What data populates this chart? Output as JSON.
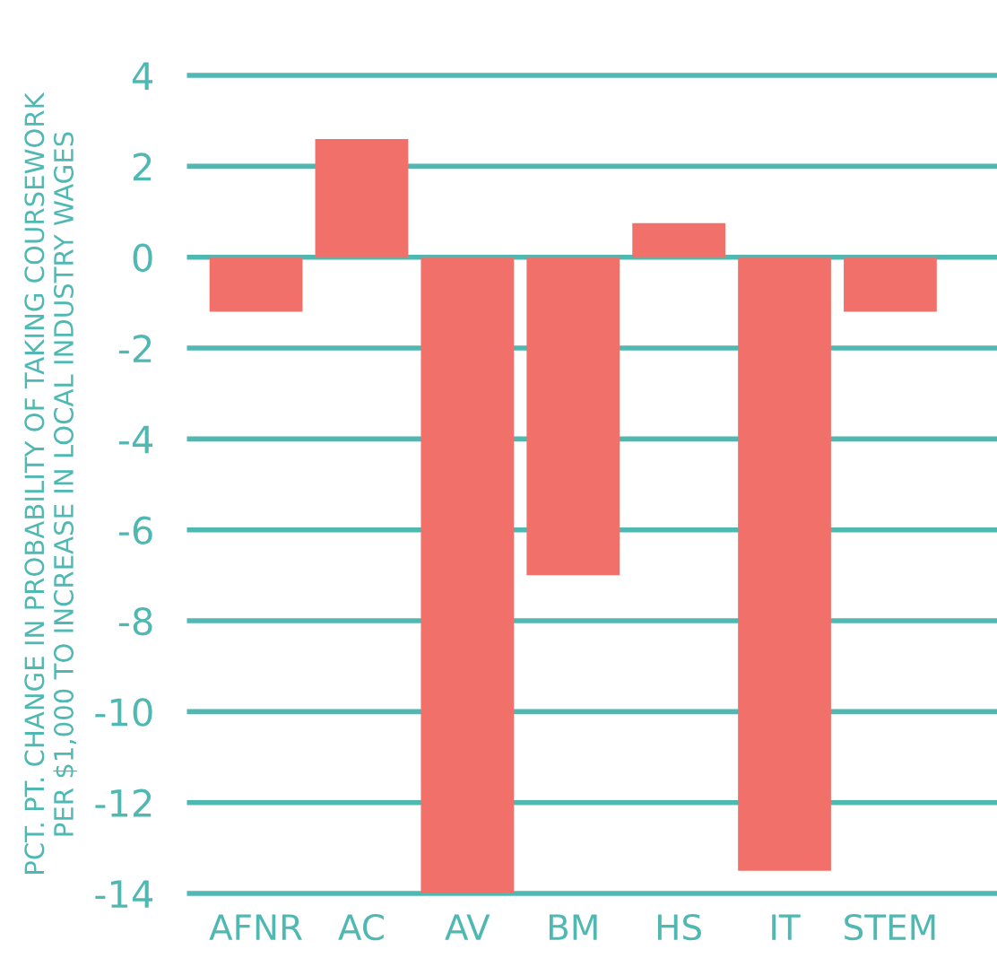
{
  "chart_data": {
    "type": "bar",
    "ylabel": "PCT. PT. CHANGE IN PROBABILITY OF TAKING COURSEWORK\nPER $1,000 TO INCREASE IN LOCAL INDUSTRY WAGES",
    "categories": [
      "AFNR",
      "AC",
      "AV",
      "BM",
      "HS",
      "IT",
      "STEM"
    ],
    "values": [
      -1.2,
      2.6,
      -14,
      -7.0,
      0.75,
      -13.5,
      -1.2
    ],
    "color": "#f1706a",
    "ylim": [
      -14,
      4
    ],
    "yticks": [
      4,
      2,
      0,
      -2,
      -4,
      -6,
      -8,
      -10,
      -12,
      -14
    ],
    "grid": "y"
  }
}
